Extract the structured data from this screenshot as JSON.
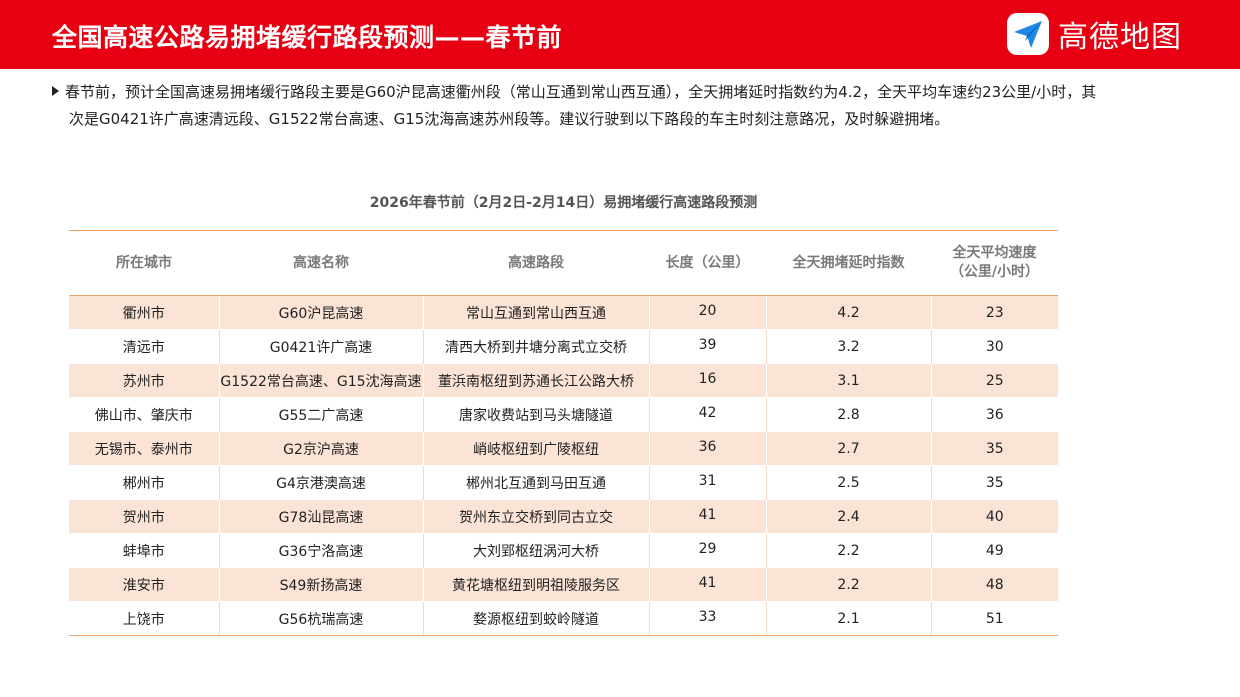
{
  "header": {
    "title": "全国高速公路易拥堵缓行路段预测——春节前",
    "logo_text": "高德地图",
    "logo_icon": "paper-plane-icon",
    "colors": {
      "banner": "#e60012",
      "accent": "#f0a060",
      "row_shade": "#fbe3d6",
      "logo_blue": "#1e88e5"
    }
  },
  "summary": {
    "line1": "春节前，预计全国高速易拥堵缓行路段主要是G60沪昆高速衢州段（常山互通到常山西互通），全天拥堵延时指数约为4.2，全天平均车速约23公里/小时，其",
    "line2": "次是G0421许广高速清远段、G1522常台高速、G15沈海高速苏州段等。建议行驶到以下路段的车主时刻注意路况，及时躲避拥堵。"
  },
  "table": {
    "title": "2026年春节前（2月2日-2月14日）易拥堵缓行高速路段预测",
    "headers": {
      "city": "所在城市",
      "name": "高速名称",
      "section": "高速路段",
      "length": "长度（公里）",
      "index": "全天拥堵延时指数",
      "speed_line1": "全天平均速度",
      "speed_line2": "（公里/小时）"
    },
    "rows": [
      {
        "city": "衢州市",
        "name": "G60沪昆高速",
        "section": "常山互通到常山西互通",
        "length": "20",
        "index": "4.2",
        "speed": "23"
      },
      {
        "city": "清远市",
        "name": "G0421许广高速",
        "section": "清西大桥到井塘分离式立交桥",
        "length": "39",
        "index": "3.2",
        "speed": "30"
      },
      {
        "city": "苏州市",
        "name": "G1522常台高速、G15沈海高速",
        "section": "董浜南枢纽到苏通长江公路大桥",
        "length": "16",
        "index": "3.1",
        "speed": "25"
      },
      {
        "city": "佛山市、肇庆市",
        "name": "G55二广高速",
        "section": "唐家收费站到马头塘隧道",
        "length": "42",
        "index": "2.8",
        "speed": "36"
      },
      {
        "city": "无锡市、泰州市",
        "name": "G2京沪高速",
        "section": "峭岐枢纽到广陵枢纽",
        "length": "36",
        "index": "2.7",
        "speed": "35"
      },
      {
        "city": "郴州市",
        "name": "G4京港澳高速",
        "section": "郴州北互通到马田互通",
        "length": "31",
        "index": "2.5",
        "speed": "35"
      },
      {
        "city": "贺州市",
        "name": "G78汕昆高速",
        "section": "贺州东立交桥到同古立交",
        "length": "41",
        "index": "2.4",
        "speed": "40"
      },
      {
        "city": "蚌埠市",
        "name": "G36宁洛高速",
        "section": "大刘郢枢纽涡河大桥",
        "length": "29",
        "index": "2.2",
        "speed": "49"
      },
      {
        "city": "淮安市",
        "name": "S49新扬高速",
        "section": "黄花塘枢纽到明祖陵服务区",
        "length": "41",
        "index": "2.2",
        "speed": "48"
      },
      {
        "city": "上饶市",
        "name": "G56杭瑞高速",
        "section": "婺源枢纽到蛟岭隧道",
        "length": "33",
        "index": "2.1",
        "speed": "51"
      }
    ]
  }
}
